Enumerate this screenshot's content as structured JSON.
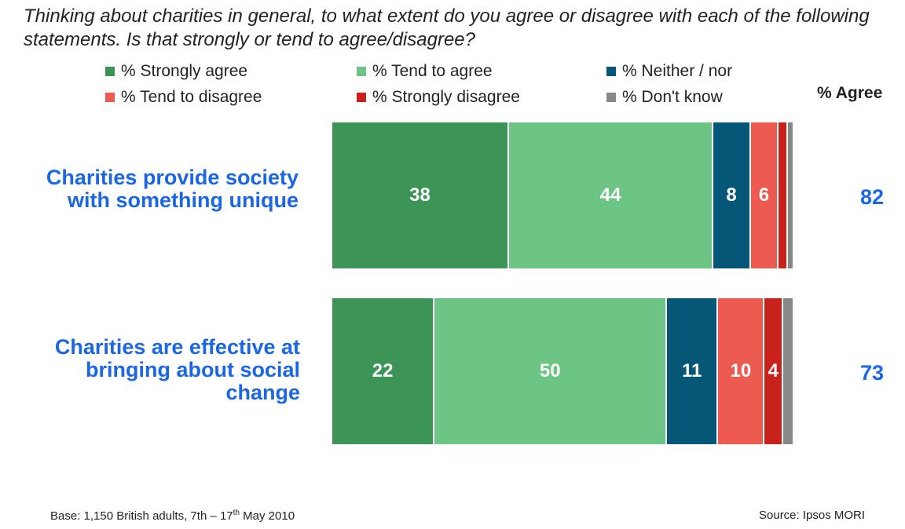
{
  "title": "Thinking about charities in general, to what extent do you agree or disagree with each of the following statements.  Is that strongly or tend to agree/disagree?",
  "agree_header": "% Agree",
  "footer_base_prefix": "Base: 1,150 British adults, 7th – 17",
  "footer_base_sup": "th",
  "footer_base_suffix": " May 2010",
  "footer_source": "Source: Ipsos MORI",
  "chart_data": {
    "type": "bar",
    "orientation": "horizontal",
    "stacked": true,
    "categories": [
      "Charities provide society with something unique",
      "Charities are effective at bringing about social change"
    ],
    "series": [
      {
        "name": "% Strongly agree",
        "color": "#3c9456",
        "values": [
          38,
          22
        ]
      },
      {
        "name": "% Tend to agree",
        "color": "#6cc585",
        "values": [
          44,
          50
        ]
      },
      {
        "name": "% Neither / nor",
        "color": "#055677",
        "values": [
          8,
          11
        ]
      },
      {
        "name": "% Tend to disagree",
        "color": "#ec5a50",
        "values": [
          6,
          10
        ]
      },
      {
        "name": "% Strongly disagree",
        "color": "#c8221a",
        "values": [
          2,
          4
        ]
      },
      {
        "name": "% Don't know",
        "color": "#888888",
        "values": [
          1,
          2
        ]
      }
    ],
    "agree_totals": [
      82,
      73
    ],
    "legend_position": "top"
  }
}
